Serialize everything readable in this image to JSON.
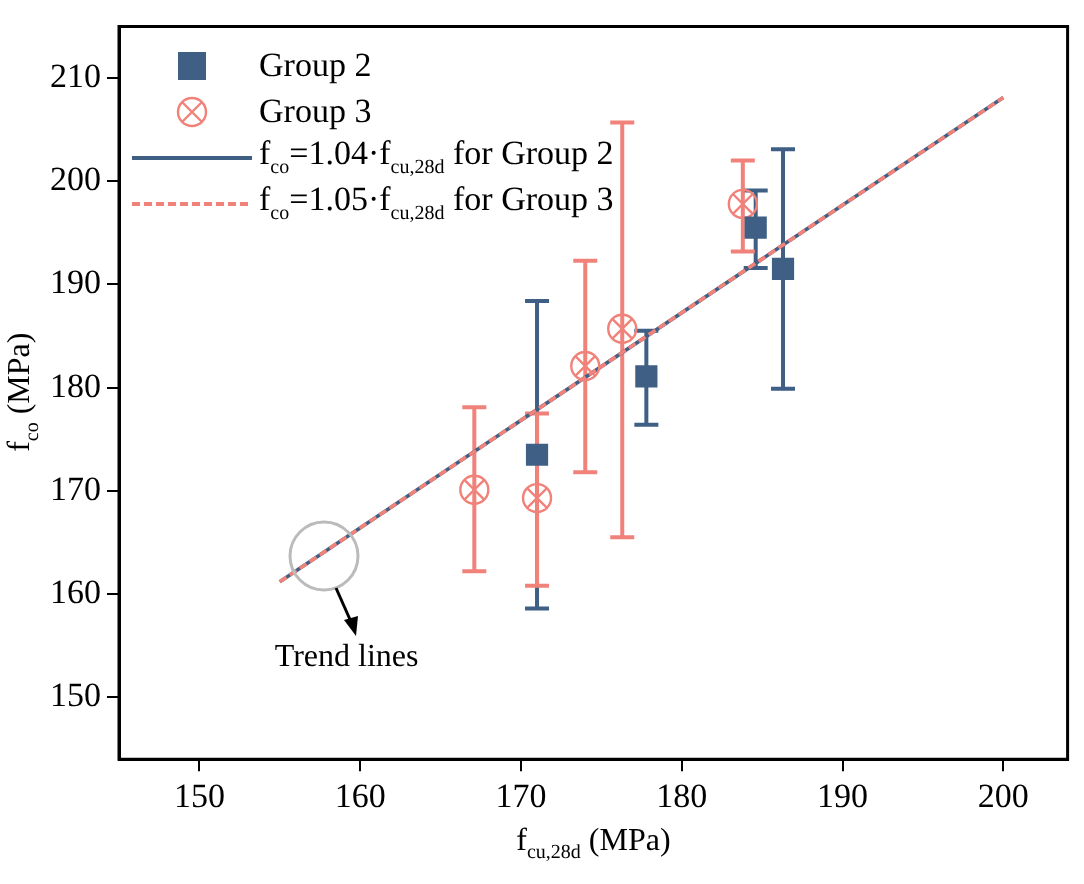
{
  "chart_data": {
    "type": "scatter",
    "xlabel": "f$_{cu,28d}$ (MPa)",
    "ylabel": "f$_{co}$ (MPa)",
    "xlim": [
      145,
      204
    ],
    "xticks": [
      150,
      160,
      170,
      180,
      190,
      200
    ],
    "ylim": [
      144,
      215
    ],
    "yticks": [
      150,
      160,
      170,
      180,
      190,
      200,
      210
    ],
    "grid": false,
    "legend": "top left",
    "series": [
      {
        "name": "Group 2",
        "marker": "square",
        "color": "#3f5f85",
        "x": [
          171.0,
          177.8,
          184.6,
          186.3
        ],
        "values": [
          173.5,
          181.1,
          195.5,
          191.5
        ],
        "errors": [
          [
            158.6,
            188.4
          ],
          [
            176.4,
            185.5
          ],
          [
            191.6,
            199.1
          ],
          [
            179.9,
            203.1
          ]
        ]
      },
      {
        "name": "Group 3",
        "marker": "circle",
        "color": "#f0827a",
        "x": [
          167.1,
          171.0,
          174.0,
          176.3,
          183.8
        ],
        "values": [
          170.1,
          169.3,
          182.1,
          185.7,
          197.8
        ],
        "errors": [
          [
            162.2,
            178.1
          ],
          [
            160.8,
            177.5
          ],
          [
            171.8,
            192.3
          ],
          [
            165.5,
            205.7
          ],
          [
            193.2,
            202.0
          ]
        ]
      },
      {
        "name": "f$_{co}$=1.04·f$_{cu,28d}$  for Group 2",
        "type": "line",
        "marker": "none",
        "line_style": "solid",
        "color": "#3f5f85",
        "x": [
          155,
          200
        ],
        "values": [
          161.2,
          208.1
        ]
      },
      {
        "name": "f$_{co}$=1.05·f$_{cu,28d}$  for Group 3",
        "type": "line",
        "marker": "none",
        "line_style": "dashed",
        "color": "#f0827a",
        "x": [
          155,
          200
        ],
        "values": [
          161.2,
          208.1
        ]
      }
    ],
    "annotations": [
      {
        "text": "Trend lines",
        "x": 157.8,
        "y": 163.6
      }
    ]
  }
}
